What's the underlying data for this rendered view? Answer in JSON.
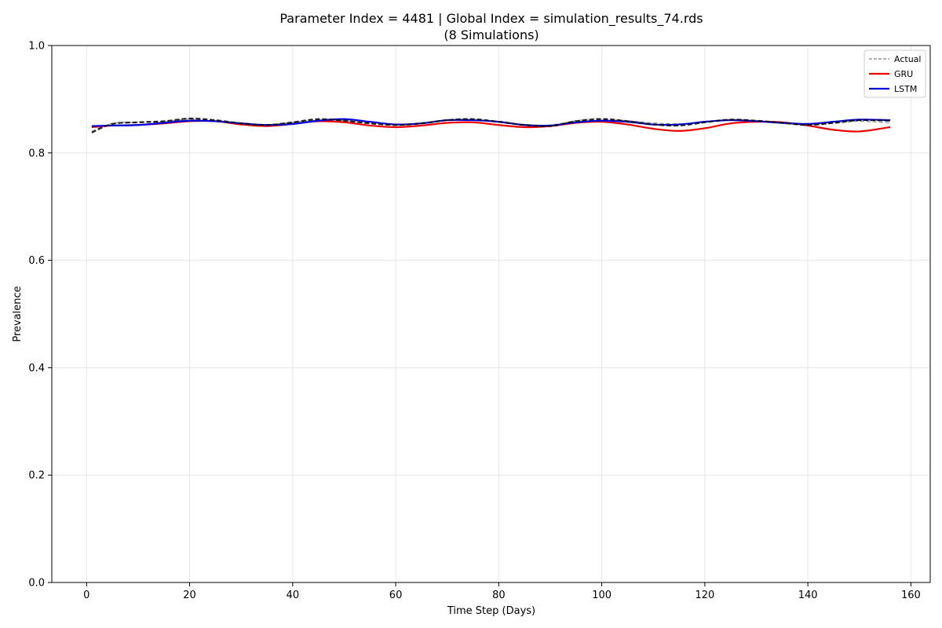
{
  "chart_data": {
    "type": "line",
    "title": "Parameter Index = 4481 | Global Index = simulation_results_74.rds",
    "subtitle": "(8 Simulations)",
    "xlabel": "Time Step (Days)",
    "ylabel": "Prevalence",
    "xlim": [
      -6.75,
      163.75
    ],
    "ylim": [
      0.0,
      1.0
    ],
    "xticks": [
      0,
      20,
      40,
      60,
      80,
      100,
      120,
      140,
      160
    ],
    "yticks": [
      0.0,
      0.2,
      0.4,
      0.6,
      0.8,
      1.0
    ],
    "xtick_labels": [
      "0",
      "20",
      "40",
      "60",
      "80",
      "100",
      "120",
      "140",
      "160"
    ],
    "ytick_labels": [
      "0.0",
      "0.2",
      "0.4",
      "0.6",
      "0.8",
      "1.0"
    ],
    "grid": true,
    "legend_position": "top-right",
    "x": [
      1,
      5,
      10,
      15,
      20,
      25,
      30,
      35,
      40,
      45,
      50,
      55,
      60,
      65,
      70,
      75,
      80,
      85,
      90,
      95,
      100,
      105,
      110,
      115,
      120,
      125,
      130,
      135,
      140,
      145,
      150,
      156
    ],
    "series": [
      {
        "name": "Actual",
        "color": "#808080",
        "style": "dashed",
        "values": [
          0.84,
          0.855,
          0.857,
          0.858,
          0.863,
          0.86,
          0.856,
          0.853,
          0.857,
          0.862,
          0.86,
          0.856,
          0.853,
          0.856,
          0.861,
          0.862,
          0.857,
          0.853,
          0.852,
          0.86,
          0.864,
          0.86,
          0.856,
          0.854,
          0.858,
          0.862,
          0.86,
          0.856,
          0.853,
          0.855,
          0.859,
          0.856
        ]
      },
      {
        "name": "GRU",
        "color": "#ee0000",
        "style": "solid",
        "values": [
          0.848,
          0.851,
          0.852,
          0.855,
          0.859,
          0.859,
          0.853,
          0.85,
          0.854,
          0.859,
          0.857,
          0.851,
          0.848,
          0.851,
          0.856,
          0.857,
          0.852,
          0.848,
          0.85,
          0.856,
          0.858,
          0.853,
          0.845,
          0.841,
          0.846,
          0.855,
          0.858,
          0.857,
          0.851,
          0.843,
          0.84,
          0.848
        ]
      },
      {
        "name": "LSTM",
        "color": "#0000dd",
        "style": "solid",
        "values": [
          0.85,
          0.851,
          0.852,
          0.856,
          0.86,
          0.859,
          0.855,
          0.852,
          0.854,
          0.86,
          0.863,
          0.858,
          0.853,
          0.855,
          0.861,
          0.861,
          0.858,
          0.852,
          0.851,
          0.857,
          0.86,
          0.858,
          0.853,
          0.853,
          0.858,
          0.861,
          0.859,
          0.856,
          0.854,
          0.858,
          0.862,
          0.861
        ]
      }
    ],
    "unlabeled_series": {
      "color": "#000000",
      "style": "dashed",
      "values": [
        0.838,
        0.854,
        0.857,
        0.859,
        0.864,
        0.861,
        0.855,
        0.852,
        0.857,
        0.863,
        0.86,
        0.855,
        0.852,
        0.855,
        0.861,
        0.863,
        0.858,
        0.852,
        0.85,
        0.859,
        0.863,
        0.859,
        0.853,
        0.851,
        0.857,
        0.862,
        0.86,
        0.856,
        0.852,
        0.856,
        0.861,
        0.86
      ]
    }
  }
}
